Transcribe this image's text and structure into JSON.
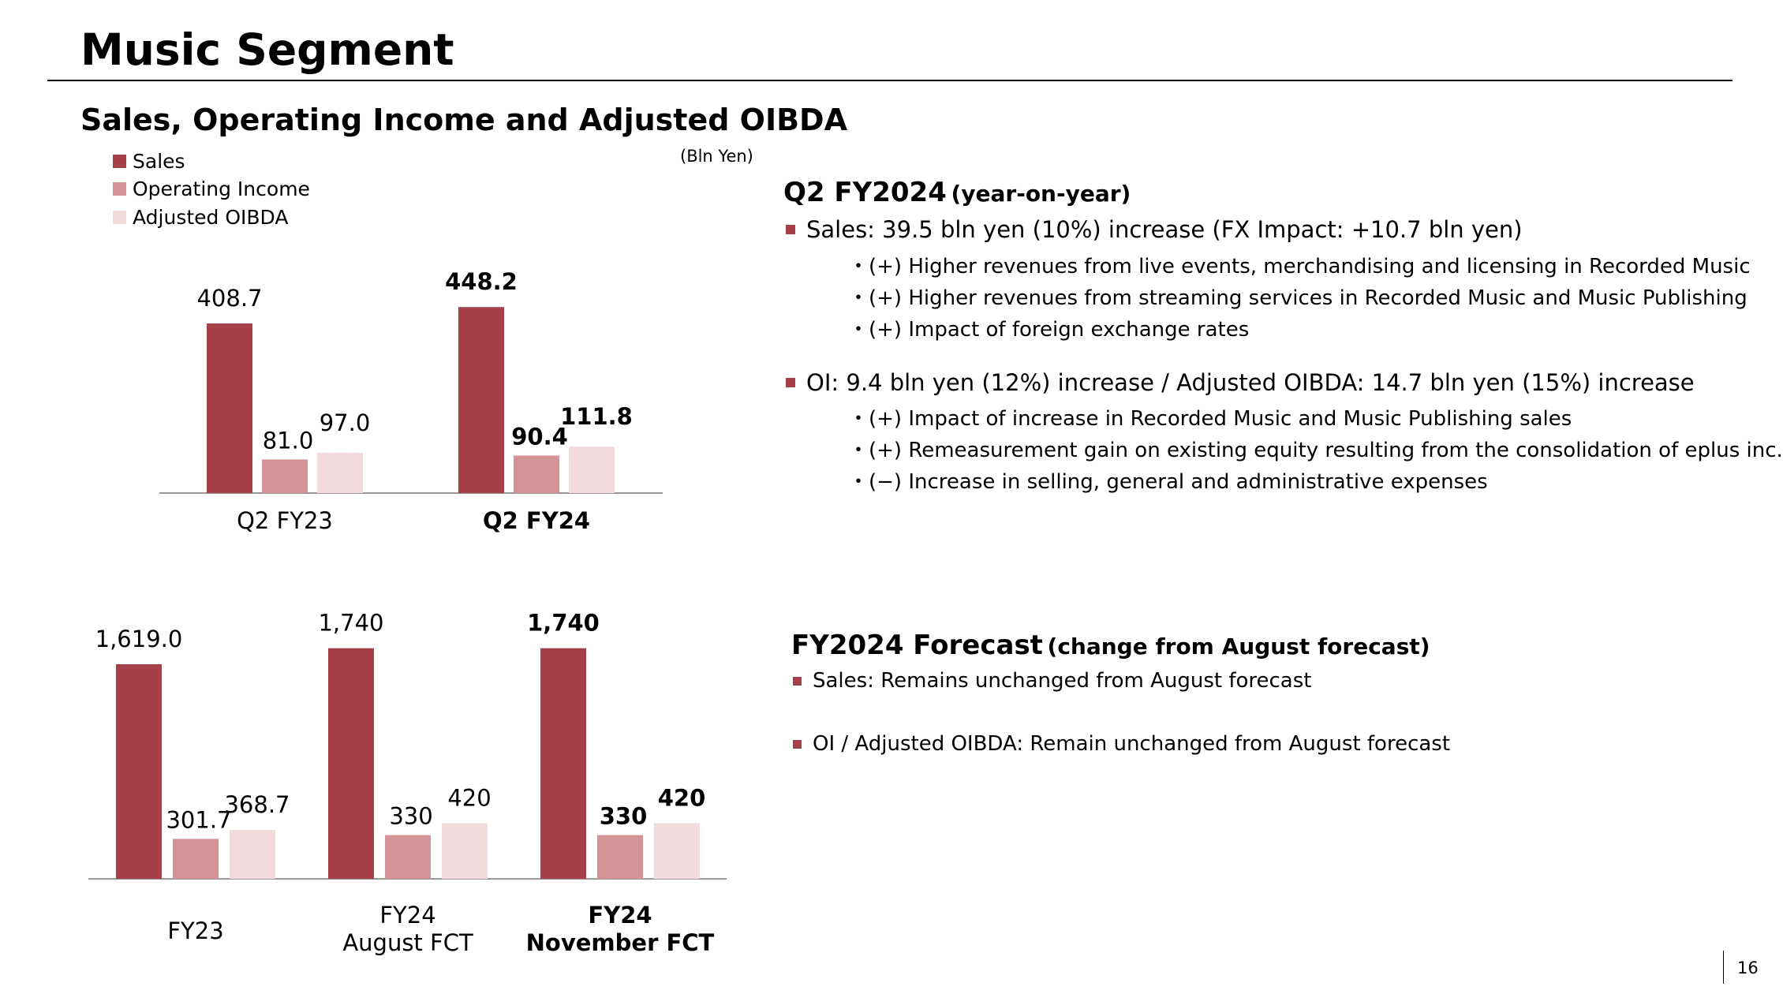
{
  "page": {
    "title": "Music Segment",
    "section_title": "Sales, Operating Income and Adjusted OIBDA",
    "unit": "(Bln Yen)",
    "page_number": "16"
  },
  "legend": [
    {
      "label": "Sales",
      "color": "#a5404a"
    },
    {
      "label": "Operating Income",
      "color": "#d49396"
    },
    {
      "label": "Adjusted OIBDA",
      "color": "#f2dbdd"
    }
  ],
  "chart_data": [
    {
      "type": "bar",
      "categories": [
        "Q2 FY23",
        "Q2 FY24"
      ],
      "series": [
        {
          "name": "Sales",
          "values": [
            408.7,
            448.2
          ]
        },
        {
          "name": "Operating Income",
          "values": [
            81.0,
            90.4
          ]
        },
        {
          "name": "Adjusted OIBDA",
          "values": [
            97.0,
            111.8
          ]
        }
      ],
      "value_labels": [
        [
          "408.7",
          "81.0",
          "97.0"
        ],
        [
          "448.2",
          "90.4",
          "111.8"
        ]
      ],
      "bold_categories": [
        false,
        true
      ],
      "ylim": [
        0,
        520
      ],
      "grid": false
    },
    {
      "type": "bar",
      "categories": [
        "FY23",
        "FY24\nAugust FCT",
        "FY24\nNovember FCT"
      ],
      "series": [
        {
          "name": "Sales",
          "values": [
            1619.0,
            1740,
            1740
          ]
        },
        {
          "name": "Operating Income",
          "values": [
            301.7,
            330,
            330
          ]
        },
        {
          "name": "Adjusted OIBDA",
          "values": [
            368.7,
            420,
            420
          ]
        }
      ],
      "value_labels": [
        [
          "1,619.0",
          "301.7",
          "368.7"
        ],
        [
          "1,740",
          "330",
          "420"
        ],
        [
          "1,740",
          "330",
          "420"
        ]
      ],
      "bold_categories": [
        false,
        false,
        true
      ],
      "ylim": [
        0,
        1900
      ],
      "grid": false
    }
  ],
  "q2_panel": {
    "heading": "Q2 FY2024",
    "heading_note": "(year-on-year)",
    "sales_line": "Sales: 39.5 bln yen (10%) increase (FX Impact: +10.7 bln yen)",
    "sales_points": [
      "・(+) Higher revenues from live events, merchandising and licensing in Recorded Music",
      "・(+) Higher revenues from streaming services in Recorded Music and Music Publishing",
      "・(+) Impact of foreign exchange rates"
    ],
    "oi_line": "OI: 9.4 bln yen (12%) increase / Adjusted OIBDA: 14.7 bln yen (15%) increase",
    "oi_points": [
      "・(+) Impact of increase in Recorded Music and Music Publishing sales",
      "・(+) Remeasurement gain on existing equity resulting from the consolidation of eplus inc.",
      "・(−) Increase in selling, general and administrative expenses"
    ]
  },
  "forecast_panel": {
    "heading": "FY2024 Forecast",
    "heading_note": "(change from August forecast)",
    "lines": [
      "Sales: Remains unchanged from August forecast",
      "OI / Adjusted OIBDA: Remain unchanged from August forecast"
    ]
  }
}
